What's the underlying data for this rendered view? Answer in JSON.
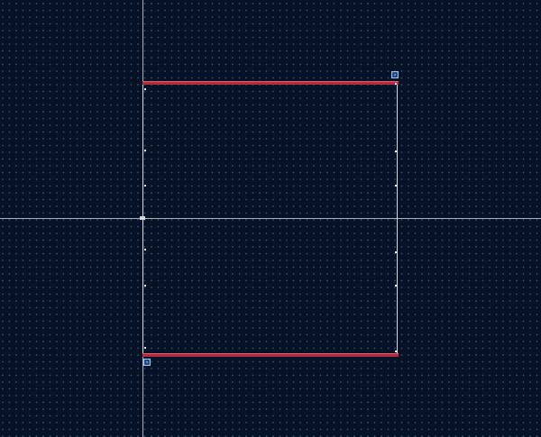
{
  "canvas": {
    "background_color": "#061226",
    "grid_dot_color": "#5e7597",
    "axis_color": "#c9cdd4"
  },
  "shape": {
    "outline_color": "#d7dbe2",
    "selected_edge_color": "#b32b3c",
    "vertex_color": "#e8ecf2"
  },
  "handles": {
    "top_right": {
      "icon": "resize-handle-icon",
      "color": "#4b84cf"
    },
    "bottom_left": {
      "icon": "resize-handle-icon",
      "color": "#4b84cf"
    }
  }
}
